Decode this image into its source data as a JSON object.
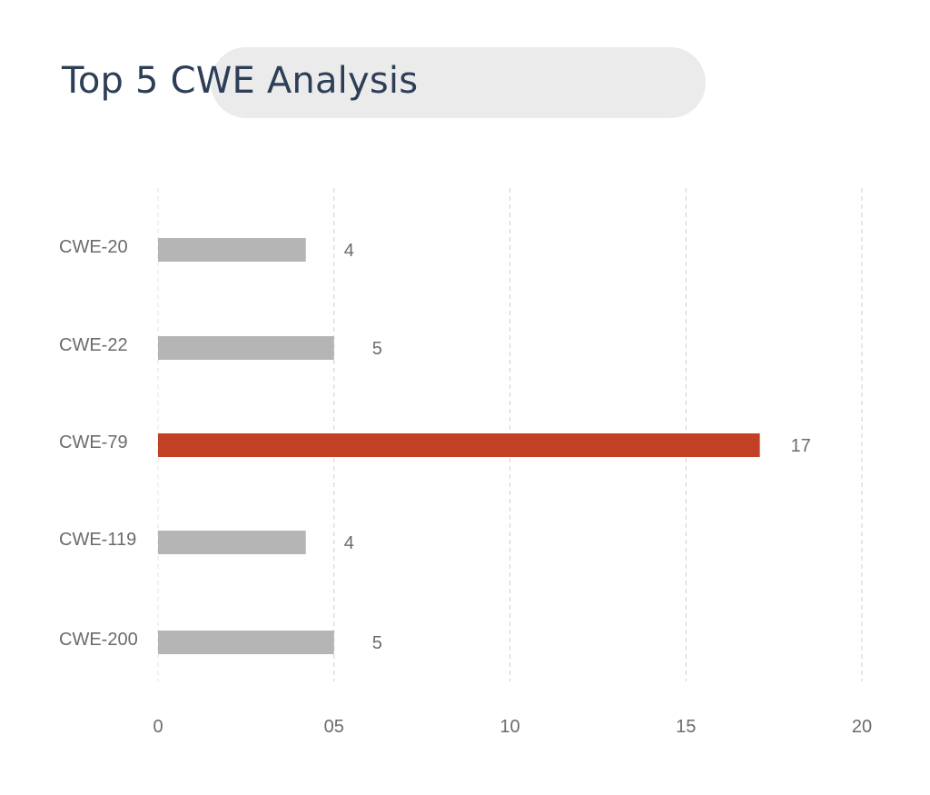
{
  "title": "Top 5 CWE Analysis",
  "chart_data": {
    "type": "bar",
    "orientation": "horizontal",
    "title": "Top 5 CWE Analysis",
    "categories": [
      "CWE-20",
      "CWE-22",
      "CWE-79",
      "CWE-119",
      "CWE-200"
    ],
    "values": [
      4.2,
      5,
      17.1,
      4.2,
      5
    ],
    "value_labels": [
      "4",
      "5",
      "17",
      "4",
      "5"
    ],
    "highlight_index": 2,
    "colors": {
      "default": "#b5b5b5",
      "highlight": "#c24126"
    },
    "xlim": [
      0,
      20
    ],
    "x_ticks": [
      0,
      5,
      10,
      15,
      20
    ],
    "x_tick_labels": [
      "0",
      "05",
      "10",
      "15",
      "20"
    ],
    "grid": "vertical dashed",
    "legend": "none"
  }
}
